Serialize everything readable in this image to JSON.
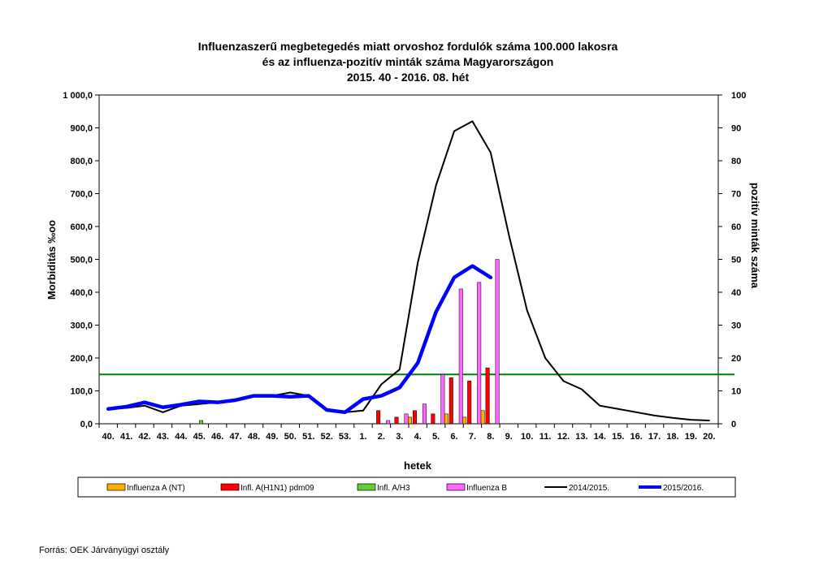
{
  "chart_data": {
    "type": "bar",
    "title": [
      "Influenzaszerű megbetegedés miatt orvoshoz fordulók száma 100.000 lakosra",
      "és az influenza-pozitív minták száma Magyarországon",
      "2015. 40 - 2016. 08. hét"
    ],
    "xlabel": "hetek",
    "ylabel": "Morbiditás ‰oo",
    "ylabel_right": "pozitív minták száma",
    "ylim": [
      0,
      1000
    ],
    "ylim_right": [
      0,
      100
    ],
    "yticks": [
      "0,0",
      "100,0",
      "200,0",
      "300,0",
      "400,0",
      "500,0",
      "600,0",
      "700,0",
      "800,0",
      "900,0",
      "1 000,0"
    ],
    "yticks_right": [
      "0",
      "10",
      "20",
      "30",
      "40",
      "50",
      "60",
      "70",
      "80",
      "90",
      "100"
    ],
    "categories": [
      "40.",
      "41.",
      "42.",
      "43.",
      "44.",
      "45.",
      "46.",
      "47.",
      "48.",
      "49.",
      "50.",
      "51.",
      "52.",
      "53.",
      "1.",
      "2.",
      "3.",
      "4.",
      "5.",
      "6.",
      "7.",
      "8.",
      "9.",
      "10.",
      "11.",
      "12.",
      "13.",
      "14.",
      "15.",
      "16.",
      "17.",
      "18.",
      "19.",
      "20."
    ],
    "threshold": 150,
    "legend_position": "bottom",
    "bar_series": [
      {
        "name": "Influenza A (NT)",
        "color": "#FFB000",
        "values": [
          0,
          0,
          0,
          0,
          0,
          0,
          0,
          0,
          0,
          0,
          0,
          0,
          0,
          0,
          0,
          0,
          0,
          2,
          0,
          3,
          2,
          4,
          null,
          null,
          null,
          null,
          null,
          null,
          null,
          null,
          null,
          null,
          null,
          null
        ]
      },
      {
        "name": "Infl. A(H1N1) pdm09",
        "color": "#FF0000",
        "values": [
          0,
          0,
          0,
          0,
          0,
          0,
          0,
          0,
          0,
          0,
          0,
          0,
          0,
          0,
          0,
          4,
          2,
          4,
          3,
          14,
          13,
          17,
          null,
          null,
          null,
          null,
          null,
          null,
          null,
          null,
          null,
          null,
          null,
          null
        ]
      },
      {
        "name": "Infl. A/H3",
        "color": "#66CC33",
        "values": [
          0,
          0,
          0,
          0,
          0,
          1,
          0,
          0,
          0,
          0,
          0,
          0,
          0,
          0,
          0,
          0,
          0,
          0,
          0,
          0,
          0,
          0,
          null,
          null,
          null,
          null,
          null,
          null,
          null,
          null,
          null,
          null,
          null,
          null
        ]
      },
      {
        "name": "Influenza B",
        "color": "#FF66FF",
        "values": [
          0,
          0,
          0,
          0,
          0,
          0,
          0,
          0,
          0,
          0,
          0,
          0,
          0,
          0,
          0,
          1,
          3,
          6,
          15,
          41,
          43,
          50,
          null,
          null,
          null,
          null,
          null,
          null,
          null,
          null,
          null,
          null,
          null,
          null
        ]
      }
    ],
    "line_series": [
      {
        "name": "2014/2015.",
        "color": "#000000",
        "values": [
          45,
          48,
          55,
          35,
          55,
          60,
          65,
          72,
          85,
          85,
          95,
          85,
          45,
          35,
          40,
          120,
          165,
          490,
          725,
          890,
          920,
          825,
          575,
          345,
          200,
          130,
          105,
          55,
          45,
          35,
          25,
          18,
          12,
          10
        ]
      },
      {
        "name": "2015/2016.",
        "color": "#0000FF",
        "values": [
          45,
          52,
          65,
          50,
          58,
          68,
          65,
          72,
          85,
          85,
          82,
          85,
          42,
          35,
          75,
          85,
          110,
          185,
          340,
          445,
          480,
          445,
          null,
          null,
          null,
          null,
          null,
          null,
          null,
          null,
          null,
          null,
          null,
          null
        ]
      }
    ]
  },
  "source": "Forrás: OEK Járványügyi osztály"
}
